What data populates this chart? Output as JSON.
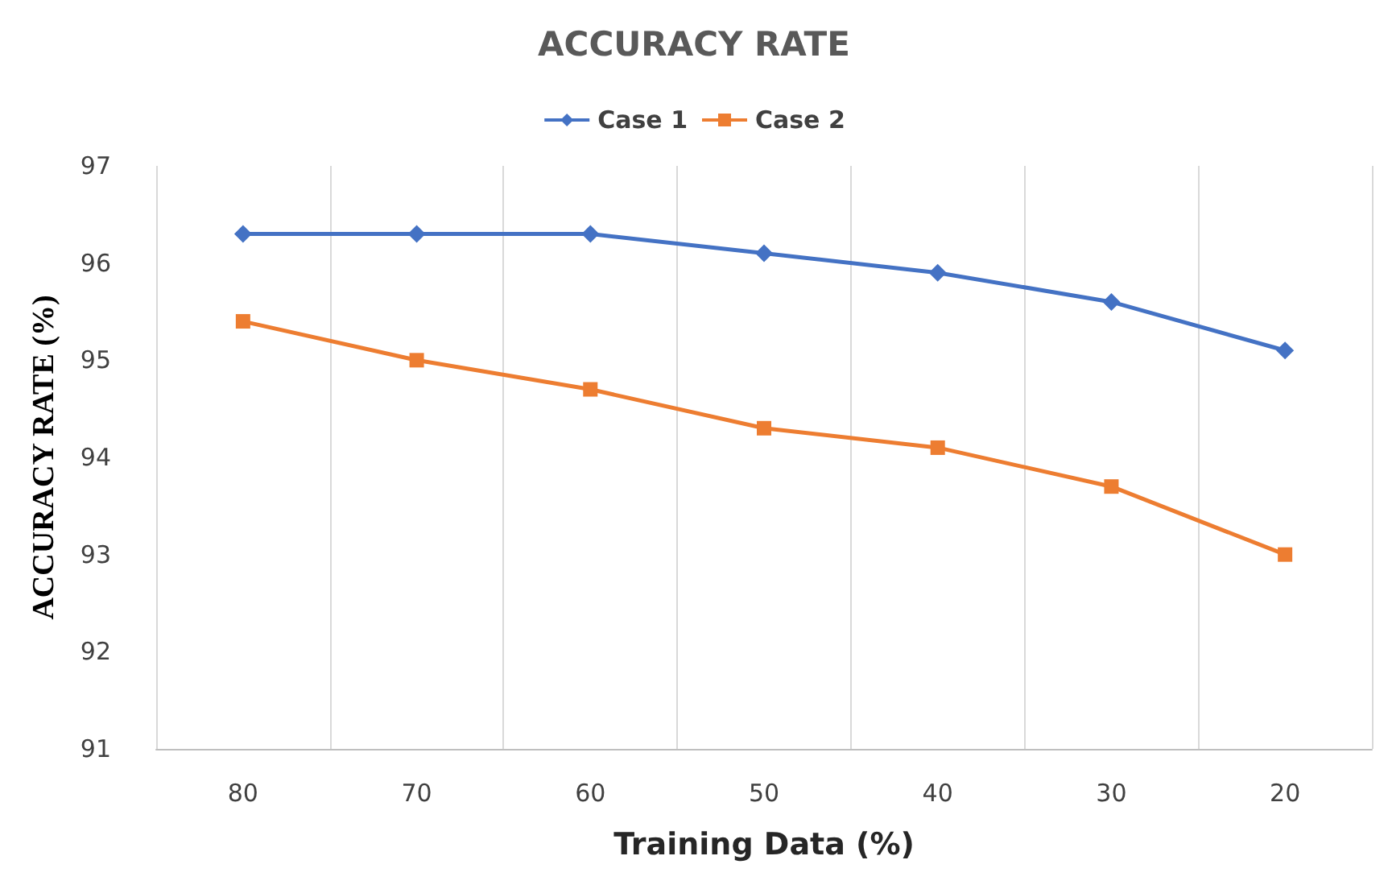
{
  "chart_data": {
    "type": "line",
    "title": "ACCURACY RATE",
    "xlabel": "Training Data (%)",
    "ylabel": "ACCURACY RATE (%)",
    "categories": [
      "80",
      "70",
      "60",
      "50",
      "40",
      "30",
      "20"
    ],
    "series": [
      {
        "name": "Case 1",
        "color": "#4472c4",
        "marker": "diamond",
        "values": [
          96.3,
          96.3,
          96.3,
          96.1,
          95.9,
          95.6,
          95.1
        ]
      },
      {
        "name": "Case 2",
        "color": "#ed7d31",
        "marker": "square",
        "values": [
          95.4,
          95.0,
          94.7,
          94.3,
          94.1,
          93.7,
          93.0
        ]
      }
    ],
    "ylim": [
      91,
      97
    ],
    "yticks": [
      91,
      92,
      93,
      94,
      95,
      96,
      97
    ],
    "grid": "x",
    "legend": "top"
  }
}
